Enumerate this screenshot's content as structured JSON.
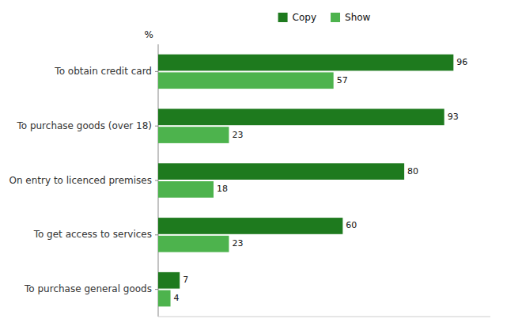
{
  "chart_data": {
    "type": "bar",
    "orientation": "horizontal",
    "x_label": "%",
    "categories": [
      "To obtain credit card",
      "To purchase goods (over 18)",
      "On entry to licenced premises",
      "To get access to services",
      "To purchase general goods"
    ],
    "series": [
      {
        "name": "Copy",
        "color": "#1e7a1e",
        "values": [
          96,
          93,
          80,
          60,
          7
        ]
      },
      {
        "name": "Show",
        "color": "#4db34d",
        "values": [
          57,
          23,
          18,
          23,
          4
        ]
      }
    ],
    "xlim": [
      0,
      108
    ],
    "data_labels": true,
    "tick_labels": "y",
    "legend": "top",
    "grid": false
  }
}
